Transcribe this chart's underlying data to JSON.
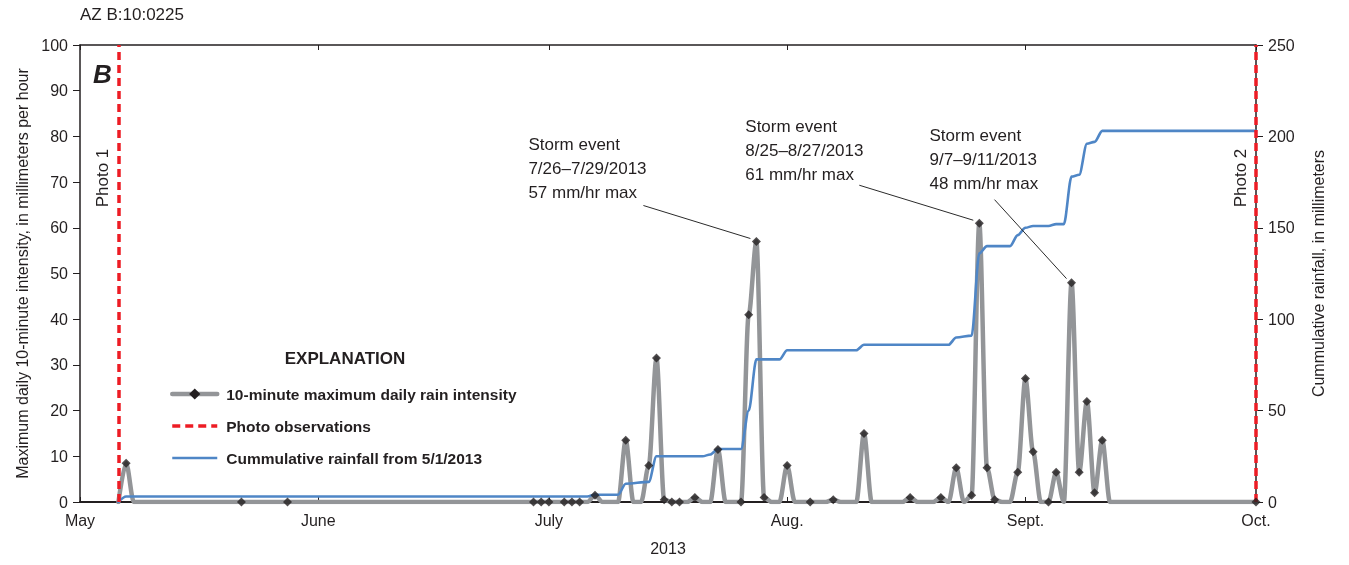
{
  "chart_data": {
    "type": "line",
    "title": "AZ B:10:0225",
    "xlabel": "2013",
    "ylabel": "Maximum daily 10-minute intensity, in millimeters per hour",
    "y2label": "Cummulative rainfall, in millimeters",
    "legend_title": "EXPLANATION",
    "legend": "bottom left",
    "grid": false,
    "xlim": [
      "2013-05-01",
      "2013-10-01"
    ],
    "xticks": [
      {
        "value": "2013-05-01",
        "label": "May"
      },
      {
        "value": "2013-06-01",
        "label": "June"
      },
      {
        "value": "2013-07-01",
        "label": "July"
      },
      {
        "value": "2013-08-01",
        "label": "Aug."
      },
      {
        "value": "2013-09-01",
        "label": "Sept."
      },
      {
        "value": "2013-10-01",
        "label": "Oct."
      }
    ],
    "ylim": [
      0,
      100
    ],
    "yticks": [
      0,
      10,
      20,
      30,
      40,
      50,
      60,
      70,
      80,
      90,
      100
    ],
    "y2lim": [
      0,
      250
    ],
    "y2ticks": [
      0,
      50,
      100,
      150,
      200,
      250
    ],
    "ref_lines": [
      {
        "axis": "x",
        "value": "2013-05-06",
        "label": "Photo 1",
        "color": "#ed1c24",
        "line_style": "dashed"
      },
      {
        "axis": "x",
        "value": "2013-10-01",
        "label": "Photo 2",
        "color": "#ed1c24",
        "line_style": "dashed"
      }
    ],
    "annotations": [
      "B",
      "Photo observations",
      {
        "text": "Storm event\n7/26–7/29/2013\n57 mm/hr max",
        "x": "2013-07-28",
        "y": 57
      },
      {
        "text": "Storm event\n8/25–8/27/2013\n61 mm/hr max",
        "x": "2013-08-26",
        "y": 61
      },
      {
        "text": "Storm event\n9/7–9/11/2013\n48 mm/hr max",
        "x": "2013-09-07",
        "y": 48
      }
    ],
    "series": [
      {
        "name": "10-minute maximum daily rain intensity",
        "color": "#939598",
        "x": [
          "2013-05-06",
          "2013-05-07",
          "2013-05-08",
          "2013-05-22",
          "2013-05-28",
          "2013-06-29",
          "2013-06-30",
          "2013-07-01",
          "2013-07-03",
          "2013-07-04",
          "2013-07-05",
          "2013-07-06",
          "2013-07-07",
          "2013-07-08",
          "2013-07-10",
          "2013-07-11",
          "2013-07-12",
          "2013-07-13",
          "2013-07-14",
          "2013-07-15",
          "2013-07-16",
          "2013-07-17",
          "2013-07-18",
          "2013-07-19",
          "2013-07-20",
          "2013-07-21",
          "2013-07-22",
          "2013-07-23",
          "2013-07-24",
          "2013-07-26",
          "2013-07-27",
          "2013-07-28",
          "2013-07-29",
          "2013-07-30",
          "2013-07-31",
          "2013-08-01",
          "2013-08-02",
          "2013-08-04",
          "2013-08-06",
          "2013-08-07",
          "2013-08-08",
          "2013-08-10",
          "2013-08-11",
          "2013-08-12",
          "2013-08-16",
          "2013-08-17",
          "2013-08-18",
          "2013-08-20",
          "2013-08-21",
          "2013-08-22",
          "2013-08-23",
          "2013-08-24",
          "2013-08-25",
          "2013-08-26",
          "2013-08-27",
          "2013-08-28",
          "2013-08-29",
          "2013-08-30",
          "2013-08-31",
          "2013-09-01",
          "2013-09-02",
          "2013-09-03",
          "2013-09-04",
          "2013-09-05",
          "2013-09-06",
          "2013-09-07",
          "2013-09-08",
          "2013-09-09",
          "2013-09-10",
          "2013-09-11",
          "2013-09-12",
          "2013-10-01"
        ],
        "values": [
          0,
          8.5,
          0,
          0,
          0,
          0,
          0,
          0,
          0,
          0,
          0,
          0,
          1.5,
          0,
          0,
          13.5,
          0,
          0,
          8,
          31.5,
          0.5,
          0,
          0,
          0,
          1,
          0,
          0,
          11.5,
          0,
          0,
          41,
          57,
          1,
          0,
          0,
          8,
          0,
          0,
          0,
          0.5,
          0,
          0,
          15,
          0,
          0,
          1,
          0,
          0,
          1,
          0,
          7.5,
          0,
          1.5,
          61,
          7.5,
          0.5,
          0,
          0,
          6.5,
          27,
          11,
          0,
          0,
          6.5,
          0,
          48,
          6.5,
          22,
          2,
          13.5,
          0,
          0
        ]
      },
      {
        "type": "scatter",
        "color": "#231f20",
        "marker": "diamond",
        "x": [
          "2013-05-07",
          "2013-05-22",
          "2013-05-28",
          "2013-06-29",
          "2013-06-30",
          "2013-07-01",
          "2013-07-03",
          "2013-07-04",
          "2013-07-05",
          "2013-07-07",
          "2013-07-11",
          "2013-07-14",
          "2013-07-15",
          "2013-07-16",
          "2013-07-17",
          "2013-07-18",
          "2013-07-20",
          "2013-07-23",
          "2013-07-26",
          "2013-07-27",
          "2013-07-28",
          "2013-07-29",
          "2013-08-01",
          "2013-08-04",
          "2013-08-07",
          "2013-08-11",
          "2013-08-17",
          "2013-08-21",
          "2013-08-23",
          "2013-08-25",
          "2013-08-26",
          "2013-08-27",
          "2013-08-28",
          "2013-08-31",
          "2013-09-01",
          "2013-09-02",
          "2013-09-04",
          "2013-09-05",
          "2013-09-07",
          "2013-09-08",
          "2013-09-09",
          "2013-09-10",
          "2013-09-11",
          "2013-10-01"
        ],
        "values": [
          8.5,
          0,
          0,
          0,
          0,
          0,
          0,
          0,
          0,
          1.5,
          13.5,
          8,
          31.5,
          0.5,
          0,
          0,
          1,
          11.5,
          0,
          41,
          57,
          1,
          8,
          0,
          0.5,
          15,
          1,
          1,
          7.5,
          1.5,
          61,
          7.5,
          0.5,
          6.5,
          27,
          11,
          0,
          6.5,
          48,
          6.5,
          22,
          2,
          13.5,
          0
        ]
      },
      {
        "name": "Cummulative rainfall from 5/1/2013",
        "axis": "y2",
        "color": "#4f86c6",
        "x": [
          "2013-05-06",
          "2013-05-07",
          "2013-07-06",
          "2013-07-07",
          "2013-07-10",
          "2013-07-11",
          "2013-07-14",
          "2013-07-15",
          "2013-07-21",
          "2013-07-22",
          "2013-07-23",
          "2013-07-26",
          "2013-07-27",
          "2013-07-28",
          "2013-07-31",
          "2013-08-01",
          "2013-08-10",
          "2013-08-11",
          "2013-08-22",
          "2013-08-23",
          "2013-08-25",
          "2013-08-26",
          "2013-08-27",
          "2013-08-30",
          "2013-08-31",
          "2013-09-01",
          "2013-09-02",
          "2013-09-04",
          "2013-09-05",
          "2013-09-06",
          "2013-09-07",
          "2013-09-08",
          "2013-09-09",
          "2013-09-10",
          "2013-09-11",
          "2013-10-01"
        ],
        "values": [
          0,
          3,
          3,
          4,
          4,
          10,
          11,
          25,
          25,
          26,
          29,
          29,
          50,
          78,
          78,
          83,
          83,
          86,
          86,
          90,
          91,
          136,
          140,
          140,
          146,
          150,
          151,
          151,
          152,
          152,
          178,
          179,
          196,
          197,
          203,
          203
        ]
      }
    ]
  }
}
